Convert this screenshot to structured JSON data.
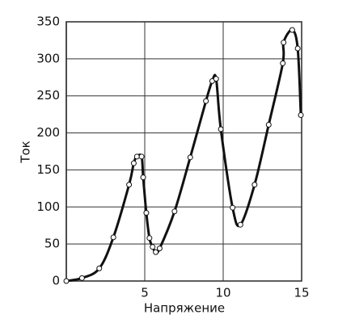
{
  "chart_data": {
    "type": "line",
    "xlabel": "Напряжение",
    "ylabel": "Ток",
    "x": [
      0,
      1.0,
      2.1,
      3.0,
      4.0,
      4.3,
      4.5,
      4.8,
      4.9,
      5.1,
      5.3,
      5.5,
      5.7,
      5.95,
      6.9,
      7.9,
      8.9,
      9.3,
      9.55,
      9.85,
      10.6,
      11.1,
      12.0,
      12.9,
      13.8,
      13.85,
      14.4,
      14.75,
      14.95
    ],
    "series": [
      {
        "name": "Ток",
        "color": "#111111",
        "values": [
          0,
          4,
          17,
          59,
          130,
          159,
          168,
          168,
          140,
          92,
          58,
          46,
          39,
          44,
          94,
          167,
          243,
          270,
          273,
          205,
          99,
          76,
          130,
          211,
          294,
          322,
          339,
          314,
          224
        ]
      }
    ],
    "xlim": [
      0,
      15
    ],
    "xticks": [
      5,
      10,
      15
    ],
    "ylim": [
      0,
      350
    ],
    "yticks": [
      0,
      50,
      100,
      150,
      200,
      250,
      300,
      350
    ],
    "grid": true
  }
}
